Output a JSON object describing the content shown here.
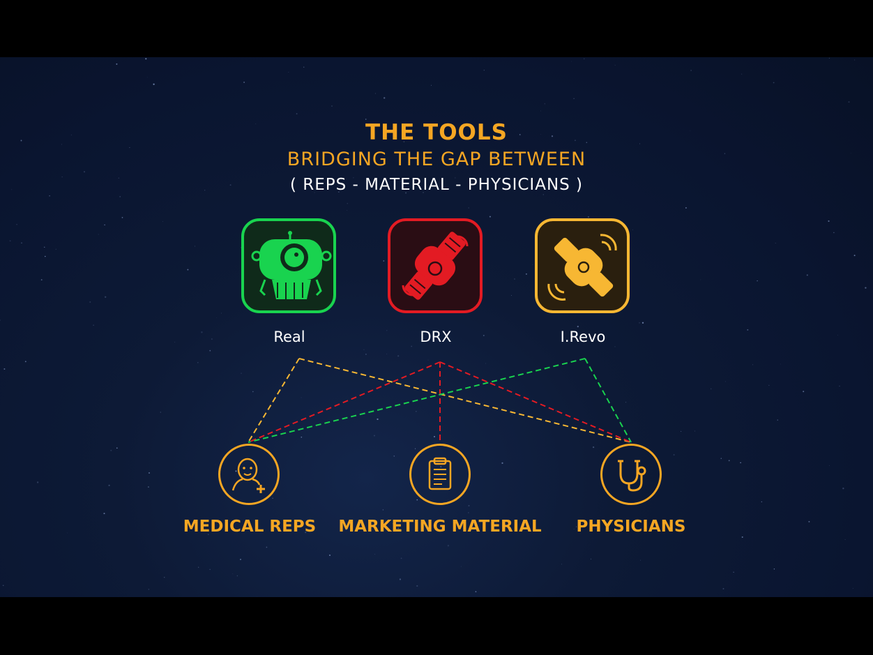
{
  "header": {
    "title": "THE TOOLS",
    "subtitle": "BRIDGING THE GAP BETWEEN",
    "tagline": "( REPS - MATERIAL - PHYSICIANS )"
  },
  "tools": [
    {
      "id": "real",
      "label": "Real",
      "color": "#19d34f",
      "icon": "robot-icon"
    },
    {
      "id": "drx",
      "label": "DRX",
      "color": "#e31b23",
      "icon": "satellite-icon"
    },
    {
      "id": "irevo",
      "label": "I.Revo",
      "color": "#f7b733",
      "icon": "satellite-icon"
    }
  ],
  "targets": [
    {
      "id": "medical-reps",
      "label": "MEDICAL REPS",
      "icon": "doctor-icon"
    },
    {
      "id": "marketing-material",
      "label": "MARKETING MATERIAL",
      "icon": "clipboard-icon"
    },
    {
      "id": "physicians",
      "label": "PHYSICIANS",
      "icon": "stethoscope-icon"
    }
  ],
  "connections": [
    {
      "from": "real",
      "to": "medical-reps",
      "color": "#f7b733"
    },
    {
      "from": "real",
      "to": "physicians",
      "color": "#f7b733"
    },
    {
      "from": "drx",
      "to": "medical-reps",
      "color": "#e31b23"
    },
    {
      "from": "drx",
      "to": "marketing-material",
      "color": "#e31b23"
    },
    {
      "from": "drx",
      "to": "physicians",
      "color": "#e31b23"
    },
    {
      "from": "irevo",
      "to": "medical-reps",
      "color": "#19d34f"
    },
    {
      "from": "irevo",
      "to": "physicians",
      "color": "#19d34f"
    }
  ],
  "colors": {
    "accent": "#f5a623",
    "background": "#0a1530"
  }
}
